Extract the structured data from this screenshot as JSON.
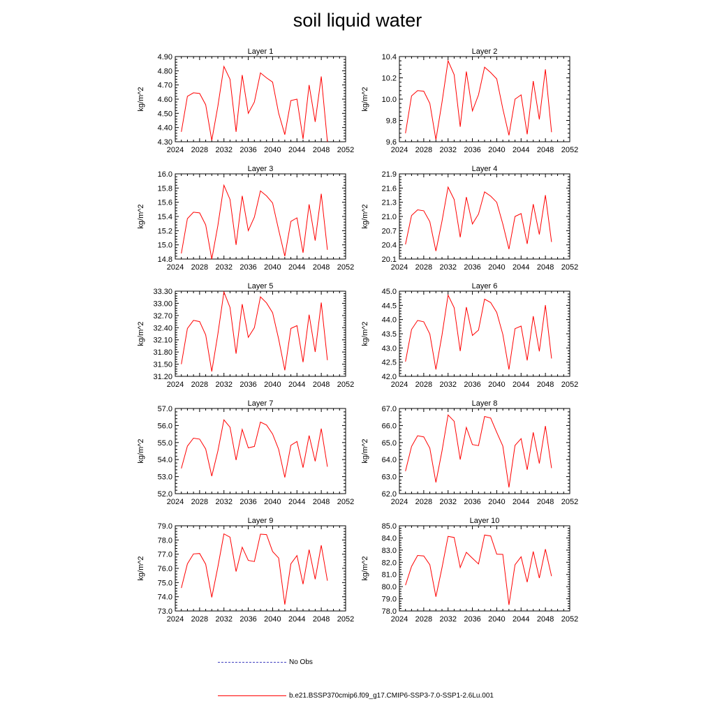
{
  "title": "soil liquid water",
  "legend": {
    "obs_label": "No Obs",
    "obs_color": "#4040c0",
    "model_label": "b.e21.BSSP370cmip6.f09_g17.CMIP6-SSP3-7.0-SSP1-2.6Lu.001",
    "model_color": "#ff0000"
  },
  "chart_data": [
    {
      "type": "line",
      "title": "Layer 1",
      "ylabel": "kg/m^2",
      "xlim": [
        2024,
        2052
      ],
      "xticks": [
        "2024",
        "2028",
        "2032",
        "2036",
        "2040",
        "2044",
        "2048",
        "2052"
      ],
      "ylim": [
        4.3,
        4.9
      ],
      "yticks": [
        "4.30",
        "4.40",
        "4.50",
        "4.60",
        "4.70",
        "4.80",
        "4.90"
      ],
      "series": [
        {
          "color": "#ff0000",
          "x": [
            2025,
            2026,
            2027,
            2028,
            2029,
            2030,
            2031,
            2032,
            2033,
            2034,
            2035,
            2036,
            2037,
            2038,
            2039,
            2040,
            2041,
            2042,
            2043,
            2044,
            2045,
            2046,
            2047,
            2048,
            2049
          ],
          "values": [
            4.37,
            4.62,
            4.645,
            4.64,
            4.56,
            4.31,
            4.55,
            4.83,
            4.74,
            4.37,
            4.77,
            4.5,
            4.58,
            4.785,
            4.75,
            4.72,
            4.5,
            4.35,
            4.59,
            4.6,
            4.32,
            4.7,
            4.44,
            4.76,
            4.3
          ]
        }
      ]
    },
    {
      "type": "line",
      "title": "Layer 2",
      "ylabel": "kg/m^2",
      "xlim": [
        2024,
        2052
      ],
      "xticks": [
        "2024",
        "2028",
        "2032",
        "2036",
        "2040",
        "2044",
        "2048",
        "2052"
      ],
      "ylim": [
        9.6,
        10.4
      ],
      "yticks": [
        "9.6",
        "9.8",
        "10.0",
        "10.2",
        "10.4"
      ],
      "series": [
        {
          "color": "#ff0000",
          "x": [
            2025,
            2026,
            2027,
            2028,
            2029,
            2030,
            2031,
            2032,
            2033,
            2034,
            2035,
            2036,
            2037,
            2038,
            2039,
            2040,
            2041,
            2042,
            2043,
            2044,
            2045,
            2046,
            2047,
            2048,
            2049
          ],
          "values": [
            9.68,
            10.03,
            10.08,
            10.075,
            9.96,
            9.62,
            9.97,
            10.36,
            10.23,
            9.74,
            10.26,
            9.89,
            10.04,
            10.3,
            10.25,
            10.19,
            9.91,
            9.66,
            10.0,
            10.04,
            9.67,
            10.17,
            9.81,
            10.28,
            9.69
          ]
        }
      ]
    },
    {
      "type": "line",
      "title": "Layer 3",
      "ylabel": "kg/m^2",
      "xlim": [
        2024,
        2052
      ],
      "xticks": [
        "2024",
        "2028",
        "2032",
        "2036",
        "2040",
        "2044",
        "2048",
        "2052"
      ],
      "ylim": [
        14.8,
        16.0
      ],
      "yticks": [
        "14.8",
        "15.0",
        "15.2",
        "15.4",
        "15.6",
        "15.8",
        "16.0"
      ],
      "series": [
        {
          "color": "#ff0000",
          "x": [
            2025,
            2026,
            2027,
            2028,
            2029,
            2030,
            2031,
            2032,
            2033,
            2034,
            2035,
            2036,
            2037,
            2038,
            2039,
            2040,
            2041,
            2042,
            2043,
            2044,
            2045,
            2046,
            2047,
            2048,
            2049
          ],
          "values": [
            14.88,
            15.37,
            15.46,
            15.45,
            15.28,
            14.8,
            15.27,
            15.84,
            15.64,
            15.0,
            15.69,
            15.2,
            15.39,
            15.76,
            15.69,
            15.59,
            15.21,
            14.84,
            15.33,
            15.38,
            14.89,
            15.57,
            15.06,
            15.72,
            14.93
          ]
        }
      ]
    },
    {
      "type": "line",
      "title": "Layer 4",
      "ylabel": "kg/m^2",
      "xlim": [
        2024,
        2052
      ],
      "xticks": [
        "2024",
        "2028",
        "2032",
        "2036",
        "2040",
        "2044",
        "2048",
        "2052"
      ],
      "ylim": [
        20.1,
        21.9
      ],
      "yticks": [
        "20.1",
        "20.4",
        "20.7",
        "21.0",
        "21.3",
        "21.6",
        "21.9"
      ],
      "series": [
        {
          "color": "#ff0000",
          "x": [
            2025,
            2026,
            2027,
            2028,
            2029,
            2030,
            2031,
            2032,
            2033,
            2034,
            2035,
            2036,
            2037,
            2038,
            2039,
            2040,
            2041,
            2042,
            2043,
            2044,
            2045,
            2046,
            2047,
            2048,
            2049
          ],
          "values": [
            20.41,
            21.02,
            21.14,
            21.12,
            20.89,
            20.27,
            20.9,
            21.62,
            21.36,
            20.56,
            21.41,
            20.84,
            21.05,
            21.52,
            21.43,
            21.3,
            20.84,
            20.31,
            21.0,
            21.06,
            20.42,
            21.26,
            20.62,
            21.45,
            20.46
          ]
        }
      ]
    },
    {
      "type": "line",
      "title": "Layer 5",
      "ylabel": "kg/m^2",
      "xlim": [
        2024,
        2052
      ],
      "xticks": [
        "2024",
        "2028",
        "2032",
        "2036",
        "2040",
        "2044",
        "2048",
        "2052"
      ],
      "ylim": [
        31.2,
        33.3
      ],
      "yticks": [
        "31.20",
        "31.50",
        "31.80",
        "32.10",
        "32.40",
        "32.70",
        "33.00",
        "33.30"
      ],
      "series": [
        {
          "color": "#ff0000",
          "x": [
            2025,
            2026,
            2027,
            2028,
            2029,
            2030,
            2031,
            2032,
            2033,
            2034,
            2035,
            2036,
            2037,
            2038,
            2039,
            2040,
            2041,
            2042,
            2043,
            2044,
            2045,
            2046,
            2047,
            2048,
            2049
          ],
          "values": [
            31.5,
            32.38,
            32.58,
            32.55,
            32.22,
            31.32,
            32.24,
            33.28,
            32.9,
            31.76,
            32.98,
            32.16,
            32.4,
            33.16,
            33.01,
            32.77,
            32.12,
            31.35,
            32.38,
            32.45,
            31.55,
            32.72,
            31.8,
            33.02,
            31.6
          ]
        }
      ]
    },
    {
      "type": "line",
      "title": "Layer 6",
      "ylabel": "kg/m^2",
      "xlim": [
        2024,
        2052
      ],
      "xticks": [
        "2024",
        "2028",
        "2032",
        "2036",
        "2040",
        "2044",
        "2048",
        "2052"
      ],
      "ylim": [
        42.0,
        45.0
      ],
      "yticks": [
        "42.0",
        "42.5",
        "43.0",
        "43.5",
        "44.0",
        "44.5",
        "45.0"
      ],
      "series": [
        {
          "color": "#ff0000",
          "x": [
            2025,
            2026,
            2027,
            2028,
            2029,
            2030,
            2031,
            2032,
            2033,
            2034,
            2035,
            2036,
            2037,
            2038,
            2039,
            2040,
            2041,
            2042,
            2043,
            2044,
            2045,
            2046,
            2047,
            2048,
            2049
          ],
          "values": [
            42.52,
            43.65,
            43.97,
            43.92,
            43.49,
            42.24,
            43.45,
            44.86,
            44.42,
            42.89,
            44.44,
            43.44,
            43.63,
            44.72,
            44.6,
            44.25,
            43.48,
            42.24,
            43.68,
            43.77,
            42.56,
            44.12,
            42.88,
            44.51,
            42.63
          ]
        }
      ]
    },
    {
      "type": "line",
      "title": "Layer 7",
      "ylabel": "kg/m^2",
      "xlim": [
        2024,
        2052
      ],
      "xticks": [
        "2024",
        "2028",
        "2032",
        "2036",
        "2040",
        "2044",
        "2048",
        "2052"
      ],
      "ylim": [
        52.0,
        57.0
      ],
      "yticks": [
        "52.0",
        "53.0",
        "54.0",
        "55.0",
        "56.0",
        "57.0"
      ],
      "series": [
        {
          "color": "#ff0000",
          "x": [
            2025,
            2026,
            2027,
            2028,
            2029,
            2030,
            2031,
            2032,
            2033,
            2034,
            2035,
            2036,
            2037,
            2038,
            2039,
            2040,
            2041,
            2042,
            2043,
            2044,
            2045,
            2046,
            2047,
            2048,
            2049
          ],
          "values": [
            53.48,
            54.79,
            55.26,
            55.2,
            54.62,
            53.03,
            54.5,
            56.33,
            55.9,
            53.97,
            55.77,
            54.69,
            54.77,
            56.2,
            56.03,
            55.5,
            54.6,
            52.95,
            54.84,
            55.06,
            53.53,
            55.41,
            53.9,
            55.82,
            53.58
          ]
        }
      ]
    },
    {
      "type": "line",
      "title": "Layer 8",
      "ylabel": "kg/m^2",
      "xlim": [
        2024,
        2052
      ],
      "xticks": [
        "2024",
        "2028",
        "2032",
        "2036",
        "2040",
        "2044",
        "2048",
        "2052"
      ],
      "ylim": [
        62.0,
        67.0
      ],
      "yticks": [
        "62.0",
        "63.0",
        "64.0",
        "65.0",
        "66.0",
        "67.0"
      ],
      "series": [
        {
          "color": "#ff0000",
          "x": [
            2025,
            2026,
            2027,
            2028,
            2029,
            2030,
            2031,
            2032,
            2033,
            2034,
            2035,
            2036,
            2037,
            2038,
            2039,
            2040,
            2041,
            2042,
            2043,
            2044,
            2045,
            2046,
            2047,
            2048,
            2049
          ],
          "values": [
            63.32,
            64.77,
            65.4,
            65.33,
            64.67,
            62.66,
            64.5,
            66.62,
            66.25,
            64.0,
            65.89,
            64.88,
            64.82,
            66.53,
            66.44,
            65.6,
            64.8,
            62.37,
            64.83,
            65.23,
            63.4,
            65.6,
            63.77,
            65.97,
            63.5
          ]
        }
      ]
    },
    {
      "type": "line",
      "title": "Layer 9",
      "ylabel": "kg/m^2",
      "xlim": [
        2024,
        2052
      ],
      "xticks": [
        "2024",
        "2028",
        "2032",
        "2036",
        "2040",
        "2044",
        "2048",
        "2052"
      ],
      "ylim": [
        73.0,
        79.0
      ],
      "yticks": [
        "73.0",
        "74.0",
        "75.0",
        "76.0",
        "77.0",
        "78.0",
        "79.0"
      ],
      "series": [
        {
          "color": "#ff0000",
          "x": [
            2025,
            2026,
            2027,
            2028,
            2029,
            2030,
            2031,
            2032,
            2033,
            2034,
            2035,
            2036,
            2037,
            2038,
            2039,
            2040,
            2041,
            2042,
            2043,
            2044,
            2045,
            2046,
            2047,
            2048,
            2049
          ],
          "values": [
            74.62,
            76.32,
            77.02,
            77.05,
            76.29,
            73.96,
            76.1,
            78.43,
            78.2,
            75.78,
            77.49,
            76.56,
            76.48,
            78.41,
            78.38,
            77.19,
            76.73,
            73.45,
            76.32,
            76.9,
            74.89,
            77.32,
            75.24,
            77.63,
            75.13
          ]
        }
      ]
    },
    {
      "type": "line",
      "title": "Layer 10",
      "ylabel": "kg/m^2",
      "xlim": [
        2024,
        2052
      ],
      "xticks": [
        "2024",
        "2028",
        "2032",
        "2036",
        "2040",
        "2044",
        "2048",
        "2052"
      ],
      "ylim": [
        78.0,
        85.0
      ],
      "yticks": [
        "78.0",
        "79.0",
        "80.0",
        "81.0",
        "82.0",
        "83.0",
        "84.0",
        "85.0"
      ],
      "series": [
        {
          "color": "#ff0000",
          "x": [
            2025,
            2026,
            2027,
            2028,
            2029,
            2030,
            2031,
            2032,
            2033,
            2034,
            2035,
            2036,
            2037,
            2038,
            2039,
            2040,
            2041,
            2042,
            2043,
            2044,
            2045,
            2046,
            2047,
            2048,
            2049
          ],
          "values": [
            80.12,
            81.66,
            82.56,
            82.52,
            81.8,
            79.17,
            81.55,
            84.13,
            84.04,
            81.57,
            82.82,
            82.33,
            81.86,
            84.24,
            84.16,
            82.67,
            82.65,
            78.5,
            81.8,
            82.45,
            80.37,
            82.88,
            80.7,
            83.08,
            80.86
          ]
        }
      ]
    }
  ]
}
